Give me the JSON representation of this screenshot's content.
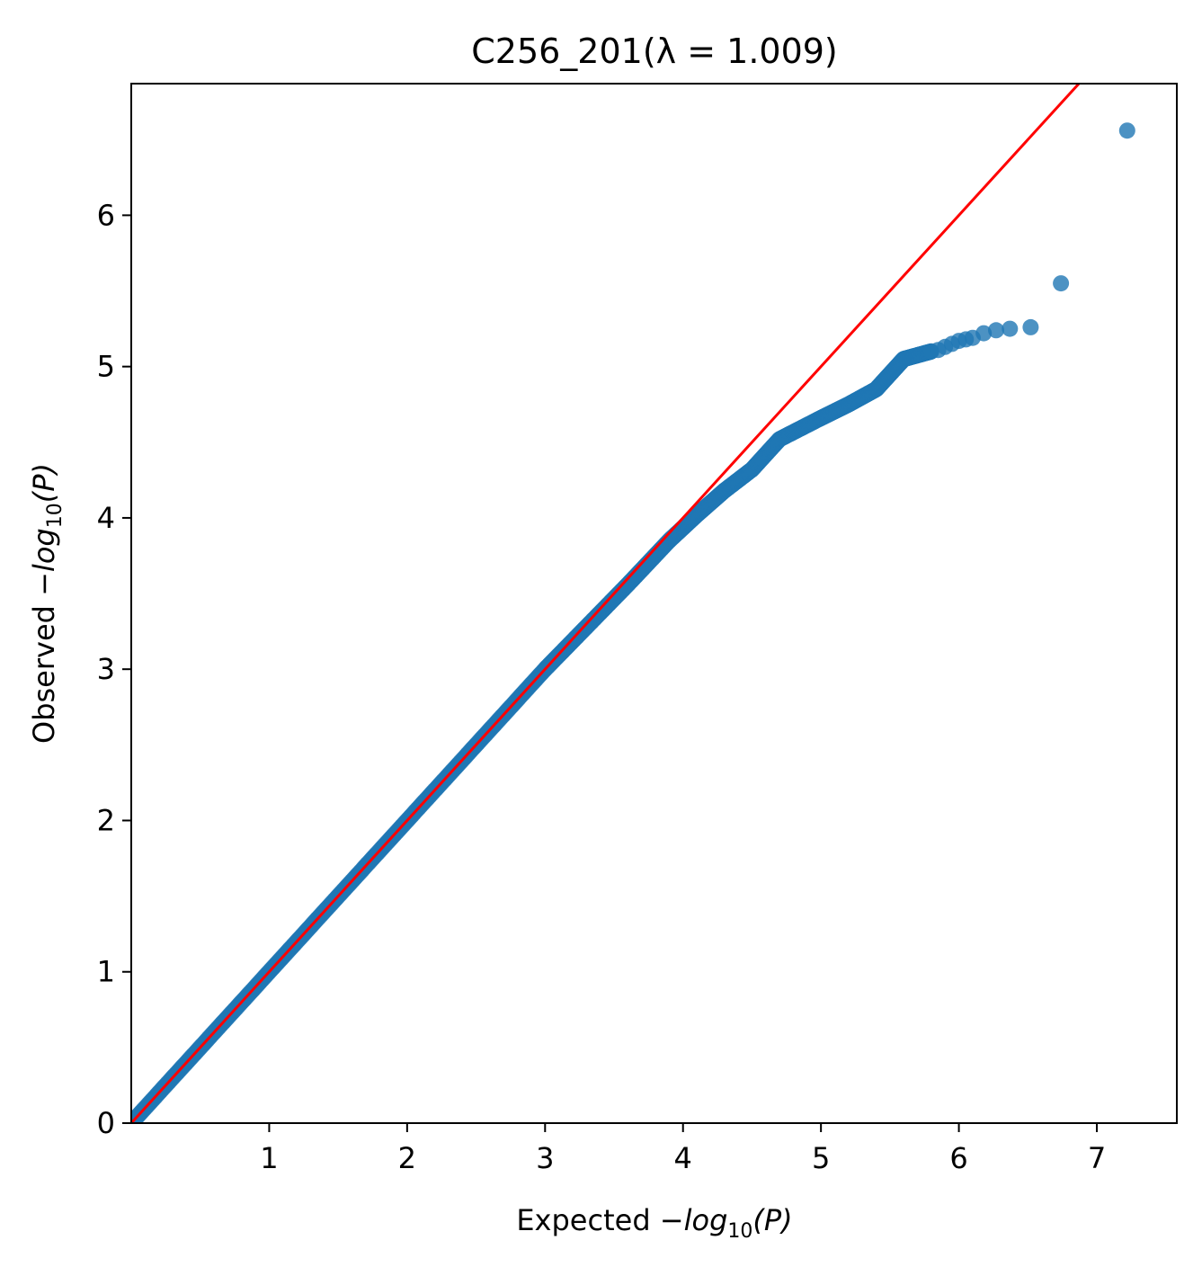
{
  "chart_data": {
    "type": "scatter",
    "title": "C256_201(λ = 1.009)",
    "xlabel": {
      "prefix": "Expected −",
      "math": "log",
      "sub": "10",
      "suffix": "(P)"
    },
    "ylabel": {
      "prefix": "Observed −",
      "math": "log",
      "sub": "10",
      "suffix": "(P)"
    },
    "xlim": [
      0,
      7.58
    ],
    "ylim": [
      0,
      6.87
    ],
    "xticks": [
      1,
      2,
      3,
      4,
      5,
      6,
      7
    ],
    "yticks": [
      0,
      1,
      2,
      3,
      4,
      5,
      6
    ],
    "grid": false,
    "legend": "none",
    "point_color": "#1f77b4",
    "line_color": "#ff0000",
    "reference_line": {
      "slope": 1,
      "intercept": 0
    },
    "curve_points": [
      [
        0.0,
        0.0
      ],
      [
        0.5,
        0.5
      ],
      [
        1.0,
        1.0
      ],
      [
        1.5,
        1.5
      ],
      [
        2.0,
        2.0
      ],
      [
        2.5,
        2.5
      ],
      [
        3.0,
        3.0
      ],
      [
        3.3,
        3.28
      ],
      [
        3.6,
        3.56
      ],
      [
        3.9,
        3.85
      ],
      [
        4.1,
        4.02
      ],
      [
        4.3,
        4.18
      ],
      [
        4.5,
        4.32
      ],
      [
        4.7,
        4.52
      ],
      [
        5.0,
        4.66
      ],
      [
        5.2,
        4.75
      ],
      [
        5.4,
        4.85
      ],
      [
        5.5,
        4.95
      ],
      [
        5.6,
        5.05
      ],
      [
        5.8,
        5.1
      ]
    ],
    "points": [
      [
        5.85,
        5.11
      ],
      [
        5.9,
        5.13
      ],
      [
        5.95,
        5.15
      ],
      [
        6.0,
        5.17
      ],
      [
        6.05,
        5.18
      ],
      [
        6.1,
        5.19
      ],
      [
        6.18,
        5.22
      ],
      [
        6.27,
        5.24
      ],
      [
        6.37,
        5.25
      ],
      [
        6.52,
        5.26
      ],
      [
        6.74,
        5.55
      ],
      [
        7.22,
        6.56
      ]
    ]
  }
}
